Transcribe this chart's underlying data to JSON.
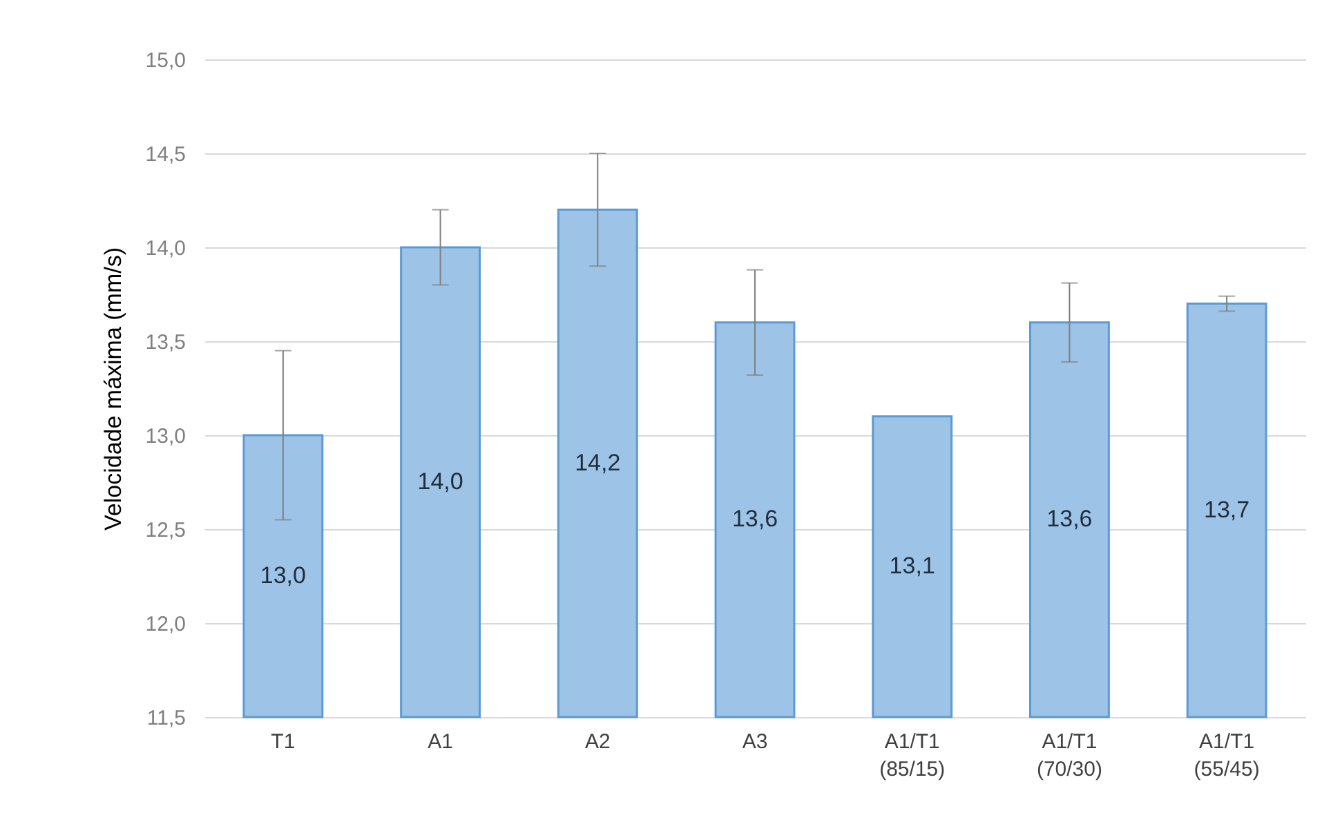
{
  "chart_data": {
    "type": "bar",
    "ylabel": "Velocidade máxima (mm/s)",
    "categories": [
      "T1",
      "A1",
      "A2",
      "A3",
      "A1/T1 (85/15)",
      "A1/T1 (70/30)",
      "A1/T1 (55/45)"
    ],
    "values": [
      13.0,
      14.0,
      14.2,
      13.6,
      13.1,
      13.6,
      13.7
    ],
    "errors": [
      0.45,
      0.2,
      0.3,
      0.28,
      null,
      0.21,
      0.04
    ],
    "color": "#9dc3e6",
    "ylim": [
      11.5,
      15.0
    ],
    "yticks": [
      {
        "value": 11.5,
        "label": "11,5"
      },
      {
        "value": 12.0,
        "label": "12,0"
      },
      {
        "value": 12.5,
        "label": "12,5"
      },
      {
        "value": 13.0,
        "label": "13,0"
      },
      {
        "value": 13.5,
        "label": "13,5"
      },
      {
        "value": 14.0,
        "label": "14,0"
      },
      {
        "value": 14.5,
        "label": "14,5"
      },
      {
        "value": 15.0,
        "label": "15,0"
      }
    ],
    "grid": "y",
    "value_labels": [
      "13,0",
      "14,0",
      "14,2",
      "13,6",
      "13,1",
      "13,6",
      "13,7"
    ]
  }
}
